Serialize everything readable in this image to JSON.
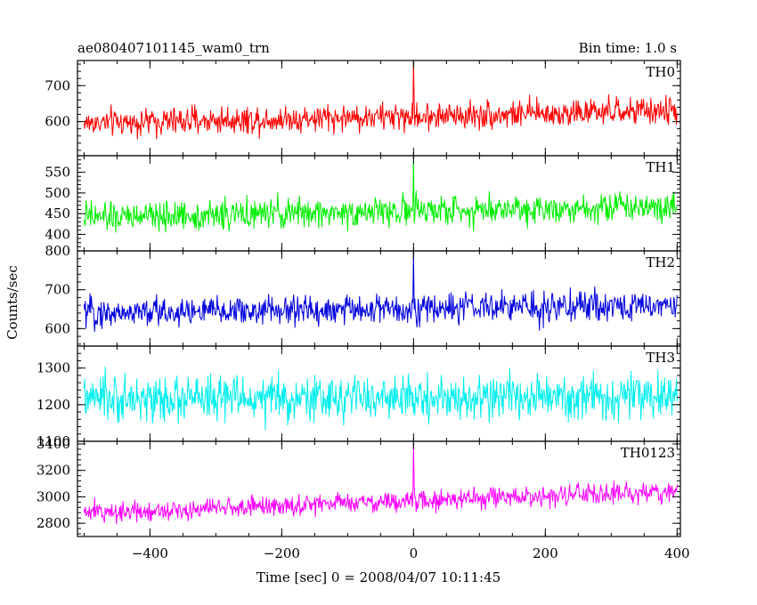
{
  "header": {
    "title": "ae080407101145_wam0_trn",
    "bin_time": "Bin time: 1.0 s"
  },
  "chart_data": {
    "type": "line",
    "title": "ae080407101145_wam0_trn",
    "xlabel": "Time [sec] 0 = 2008/04/07 10:11:45",
    "ylabel": "Counts/sec",
    "xlim": [
      -510,
      405
    ],
    "x_ticks": [
      -400,
      -200,
      0,
      200,
      400
    ],
    "x_range": [
      -500,
      400
    ],
    "bin_time_s": 1.0,
    "panels": [
      {
        "name": "TH0",
        "color": "#ff0000",
        "ylim": [
          505,
          770
        ],
        "y_ticks": [
          600,
          700
        ],
        "baseline_start": 596,
        "baseline_end": 630,
        "noise": 27,
        "spike": {
          "x": 0,
          "y": 770
        }
      },
      {
        "name": "TH1",
        "color": "#00ee00",
        "ylim": [
          360,
          590
        ],
        "y_ticks": [
          400,
          450,
          500,
          550
        ],
        "baseline_start": 440,
        "baseline_end": 470,
        "noise": 25,
        "spike": {
          "x": 0,
          "y": 590
        }
      },
      {
        "name": "TH2",
        "color": "#0000dd",
        "ylim": [
          555,
          800
        ],
        "y_ticks": [
          600,
          700,
          800
        ],
        "baseline_start": 640,
        "baseline_end": 660,
        "noise": 27,
        "spike": {
          "x": 0,
          "y": 800
        }
      },
      {
        "name": "TH3",
        "color": "#00eeee",
        "ylim": [
          1100,
          1360
        ],
        "y_ticks": [
          1100,
          1200,
          1300
        ],
        "baseline_start": 1215,
        "baseline_end": 1220,
        "noise": 42,
        "spike": null
      },
      {
        "name": "TH0123",
        "color": "#ff00ff",
        "ylim": [
          2700,
          3420
        ],
        "y_ticks": [
          2800,
          3000,
          3200,
          3400
        ],
        "baseline_start": 2880,
        "baseline_end": 3040,
        "noise": 55,
        "spike": {
          "x": 0,
          "y": 3410
        }
      }
    ]
  }
}
